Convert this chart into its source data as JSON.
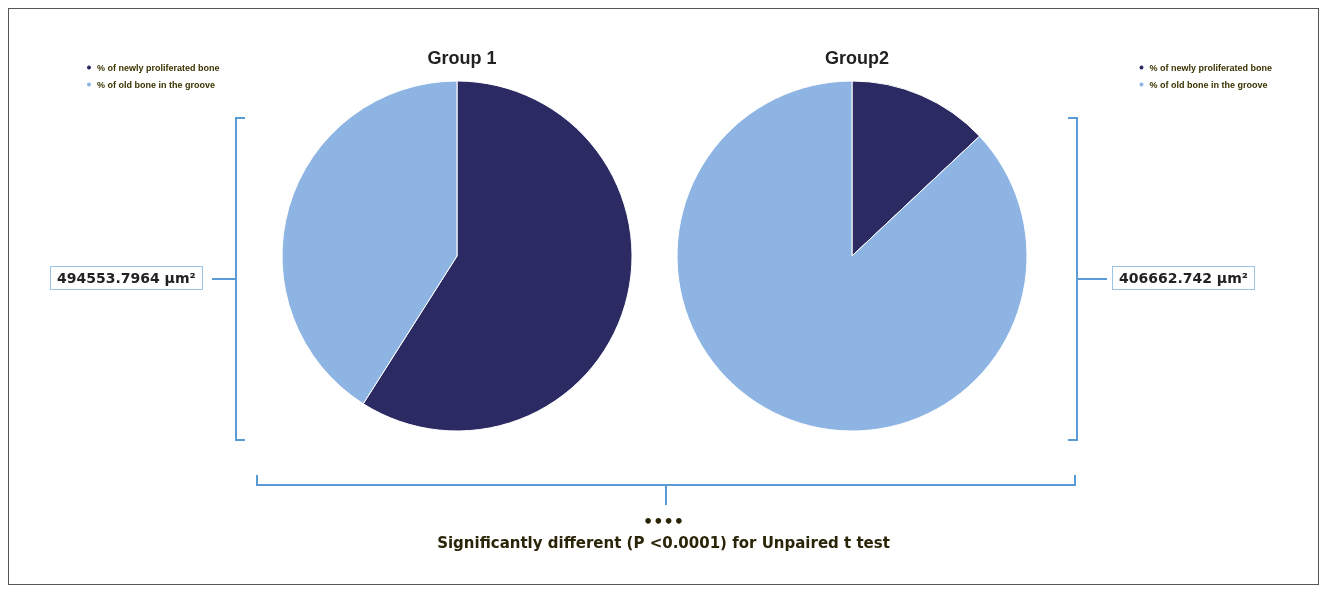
{
  "chart_data": [
    {
      "type": "pie",
      "title": "Group 1",
      "categories": [
        "% of newly proliferated bone",
        "% of old bone in the groove"
      ],
      "values": [
        59,
        41
      ],
      "colors": [
        "#2b2a63",
        "#8db4e2"
      ],
      "legend": "top left",
      "annotations": [
        "494553.7964 µm²"
      ]
    },
    {
      "type": "pie",
      "title": "Group2",
      "categories": [
        "% of newly proliferated bone",
        "% of old bone in the groove"
      ],
      "values": [
        13,
        87
      ],
      "colors": [
        "#2b2a63",
        "#8db4e2"
      ],
      "legend": "top right",
      "annotations": [
        "406662.742 µm²",
        "••••",
        "Significantly different (P <0.0001) for Unpaired t test"
      ]
    }
  ]
}
